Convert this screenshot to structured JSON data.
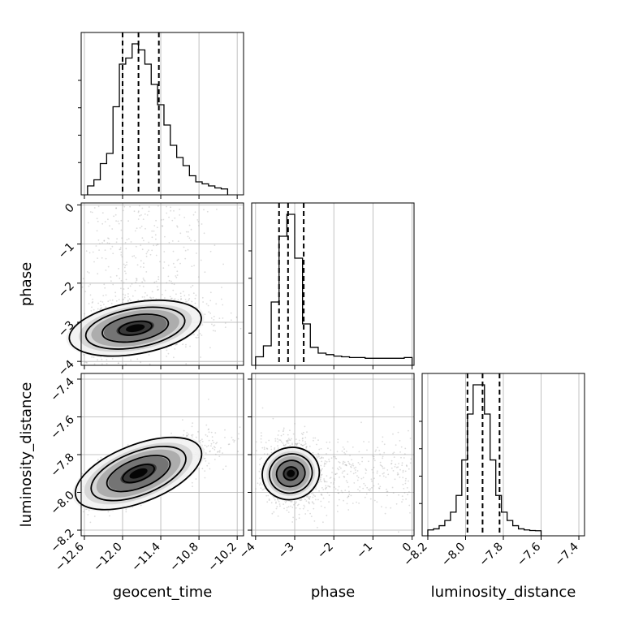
{
  "chart_data": {
    "type": "corner",
    "parameters": [
      "geocent_time",
      "phase",
      "luminosity_distance"
    ],
    "axis_labels": {
      "geocent_time": "geocent_time",
      "phase": "phase",
      "luminosity_distance": "luminosity_distance"
    },
    "ranges": {
      "geocent_time": [
        -12.65,
        -10.1
      ],
      "phase": [
        -4.1,
        0.05
      ],
      "luminosity_distance": [
        -8.23,
        -7.37
      ]
    },
    "ticks": {
      "geocent_time": [
        -12.6,
        -12.0,
        -11.4,
        -10.8,
        -10.2
      ],
      "phase": [
        -4,
        -3,
        -2,
        -1,
        0
      ],
      "luminosity_distance": [
        -8.2,
        -8.0,
        -7.8,
        -7.6,
        -7.4
      ]
    },
    "tick_labels": {
      "geocent_time": [
        "−12.6",
        "−12.0",
        "−11.4",
        "−10.8",
        "−10.2"
      ],
      "phase": [
        "−4",
        "−3",
        "−2",
        "−1",
        "0"
      ],
      "luminosity_distance": [
        "−8.2",
        "−8.0",
        "−7.8",
        "−7.6",
        "−7.4"
      ]
    },
    "quantiles": {
      "geocent_time": [
        -12.0,
        -11.75,
        -11.43
      ],
      "phase": [
        -3.4,
        -3.17,
        -2.77
      ],
      "luminosity_distance": [
        -7.99,
        -7.91,
        -7.82
      ]
    },
    "histograms": {
      "geocent_time": {
        "edges": [
          -12.55,
          -12.45,
          -12.35,
          -12.25,
          -12.15,
          -12.05,
          -11.95,
          -11.85,
          -11.75,
          -11.65,
          -11.55,
          -11.45,
          -11.35,
          -11.25,
          -11.15,
          -11.05,
          -10.95,
          -10.85,
          -10.75,
          -10.65,
          -10.55,
          -10.45,
          -10.35
        ],
        "counts": [
          20,
          50,
          130,
          180,
          410,
          620,
          650,
          720,
          690,
          620,
          520,
          420,
          320,
          220,
          160,
          120,
          70,
          40,
          30,
          20,
          10,
          5
        ]
      },
      "phase": {
        "edges": [
          -4.0,
          -3.8,
          -3.6,
          -3.4,
          -3.2,
          -3.0,
          -2.8,
          -2.6,
          -2.4,
          -2.2,
          -2.0,
          -1.8,
          -1.6,
          -1.4,
          -1.2,
          -1.0,
          -0.8,
          -0.6,
          -0.4,
          -0.2,
          0.0
        ],
        "counts": [
          25,
          100,
          400,
          850,
          1000,
          700,
          250,
          90,
          50,
          40,
          30,
          25,
          20,
          20,
          15,
          15,
          15,
          15,
          15,
          20
        ]
      },
      "luminosity_distance": {
        "edges": [
          -8.2,
          -8.17,
          -8.14,
          -8.11,
          -8.08,
          -8.05,
          -8.02,
          -7.99,
          -7.96,
          -7.93,
          -7.9,
          -7.87,
          -7.84,
          -7.81,
          -7.78,
          -7.75,
          -7.72,
          -7.69,
          -7.66,
          -7.63,
          -7.6
        ],
        "counts": [
          5,
          10,
          25,
          50,
          90,
          170,
          340,
          560,
          700,
          700,
          560,
          340,
          170,
          90,
          50,
          25,
          10,
          5,
          2,
          1
        ]
      }
    },
    "scatter_2d": {
      "geocent_time_vs_phase": {
        "mean": [
          -11.8,
          -3.15
        ],
        "cov": [
          [
            0.25,
            0.06
          ],
          [
            0.06,
            0.12
          ]
        ],
        "n": 1500
      },
      "geocent_time_vs_luminosity_distance": {
        "mean": [
          -11.75,
          -7.9
        ],
        "cov": [
          [
            0.25,
            0.03
          ],
          [
            0.03,
            0.0064
          ]
        ],
        "n": 1500
      },
      "phase_vs_luminosity_distance": {
        "mean": [
          -3.1,
          -7.9
        ],
        "cov": [
          [
            0.1,
            -0.003
          ],
          [
            -0.003,
            0.0064
          ]
        ],
        "n": 1500
      }
    },
    "contour_levels_sigma": [
      0.5,
      1.0,
      1.5,
      2.0
    ],
    "grid": true,
    "colors": {
      "hist": "#000000",
      "scatter": "#9a9a9a",
      "density": "#000000",
      "grid": "#b0b0b0"
    }
  }
}
